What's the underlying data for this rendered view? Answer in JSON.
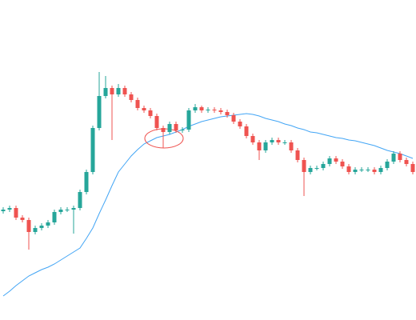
{
  "chart_data": {
    "type": "candlestick",
    "ylim": [
      0,
      400
    ],
    "up_color": "#26a69a",
    "down_color": "#ef5350",
    "open": [
      136,
      138,
      140,
      128,
      125,
      110,
      115,
      118,
      122,
      135,
      138,
      138,
      140,
      160,
      185,
      240,
      280,
      290,
      282,
      290,
      282,
      275,
      265,
      262,
      255,
      240,
      235,
      245,
      237,
      238,
      262,
      266,
      262,
      263,
      262,
      260,
      256,
      248,
      242,
      230,
      222,
      212,
      222,
      225,
      222,
      222,
      212,
      200,
      185,
      190,
      190,
      195,
      202,
      198,
      192,
      185,
      188,
      188,
      188,
      185,
      190,
      198,
      208,
      200,
      195
    ],
    "high": [
      141,
      143,
      143,
      131,
      128,
      118,
      121,
      125,
      138,
      141,
      141,
      143,
      163,
      188,
      243,
      310,
      305,
      293,
      295,
      293,
      285,
      278,
      268,
      265,
      258,
      243,
      248,
      248,
      241,
      265,
      270,
      268,
      266,
      266,
      265,
      263,
      259,
      251,
      245,
      233,
      225,
      225,
      228,
      228,
      225,
      225,
      215,
      203,
      193,
      193,
      198,
      205,
      205,
      201,
      195,
      191,
      191,
      191,
      191,
      193,
      201,
      211,
      211,
      203,
      198
    ],
    "low": [
      133,
      135,
      125,
      122,
      88,
      107,
      112,
      115,
      119,
      132,
      135,
      108,
      137,
      157,
      182,
      237,
      277,
      225,
      279,
      279,
      272,
      262,
      259,
      252,
      237,
      215,
      232,
      234,
      234,
      235,
      259,
      259,
      259,
      259,
      257,
      253,
      245,
      239,
      227,
      219,
      200,
      209,
      219,
      219,
      219,
      209,
      197,
      155,
      182,
      187,
      187,
      192,
      195,
      189,
      182,
      182,
      185,
      185,
      182,
      182,
      187,
      195,
      197,
      192,
      182
    ],
    "close": [
      138,
      140,
      128,
      125,
      110,
      115,
      118,
      122,
      135,
      138,
      138,
      140,
      160,
      185,
      240,
      280,
      290,
      282,
      290,
      282,
      275,
      265,
      262,
      255,
      240,
      235,
      245,
      237,
      238,
      262,
      266,
      262,
      263,
      262,
      260,
      256,
      248,
      242,
      230,
      222,
      212,
      222,
      225,
      222,
      222,
      212,
      200,
      185,
      190,
      190,
      195,
      202,
      198,
      192,
      185,
      188,
      188,
      188,
      185,
      190,
      198,
      208,
      200,
      195,
      185
    ],
    "moving_average": {
      "color": "#42a5f5",
      "values": [
        30,
        36,
        43,
        49,
        55,
        59,
        63,
        66,
        70,
        75,
        80,
        85,
        90,
        102,
        115,
        133,
        150,
        168,
        185,
        195,
        205,
        213,
        220,
        224,
        228,
        230,
        232,
        235,
        238,
        242,
        245,
        248,
        250,
        252,
        254,
        255,
        256,
        257,
        258,
        257,
        255,
        252,
        250,
        248,
        245,
        243,
        240,
        238,
        235,
        234,
        232,
        230,
        228,
        227,
        225,
        224,
        222,
        220,
        218,
        215,
        212,
        210,
        208,
        205,
        202
      ]
    }
  }
}
